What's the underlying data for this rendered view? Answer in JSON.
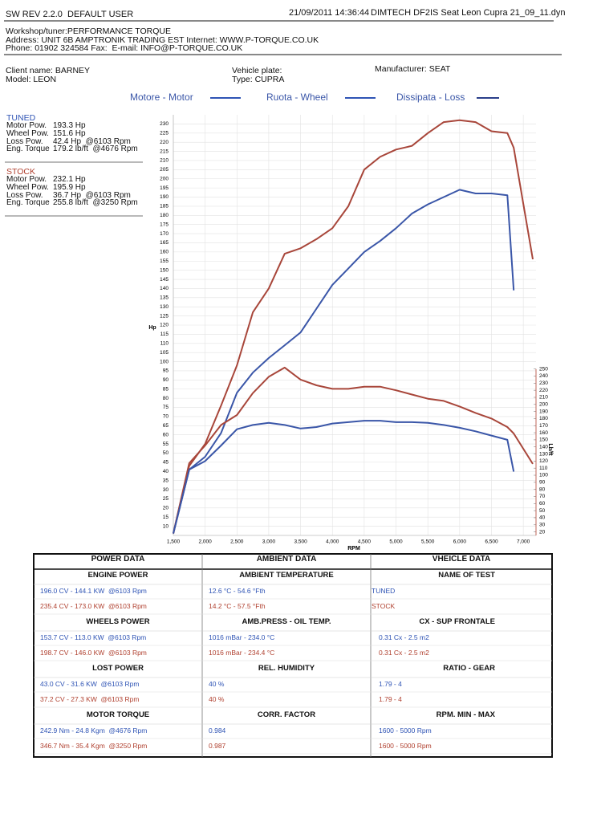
{
  "header": {
    "software": "SW REV 2.2.0  DEFAULT USER",
    "datetime": "21/09/2011 14:36:44",
    "file": "DIMTECH DF2IS Seat Leon Cupra 21_09_11.dyn"
  },
  "workshop": [
    "Workshop/tuner:PERFORMANCE TORQUE",
    "Address: UNIT 6B AMPTRONIK TRADING EST Internet: WWW.P-TORQUE.CO.UK",
    "Phone: 01902 324584 Fax:  E-mail: INFO@P-TORQUE.CO.UK"
  ],
  "client": {
    "name": "Client name: BARNEY",
    "model": "Model: LEON",
    "plate": "Vehicle plate:",
    "type": "Type: CUPRA",
    "manufacturer": "Manufacturer: SEAT"
  },
  "summary": [
    {
      "title": "TUNED",
      "color": "#2f54b5",
      "rows": [
        [
          "Motor Pow.",
          "193.3 Hp"
        ],
        [
          "Wheel Pow.",
          "151.6 Hp"
        ],
        [
          "Loss Pow.",
          "42.4 Hp  @6103 Rpm"
        ],
        [
          "Eng. Torque",
          "179.2 lb/ft  @4676 Rpm"
        ]
      ]
    },
    {
      "title": "STOCK",
      "color": "#b0402f",
      "rows": [
        [
          "Motor Pow.",
          "232.1 Hp"
        ],
        [
          "Wheel Pow.",
          "195.9 Hp"
        ],
        [
          "Loss Pow.",
          "36.7 Hp  @6103 Rpm"
        ],
        [
          "Eng. Torque",
          "255.8 lb/ft  @3250 Rpm"
        ]
      ]
    }
  ],
  "table": {
    "headers": [
      "POWER DATA",
      "AMBIENT DATA",
      "VHEICLE DATA"
    ],
    "row_colors": [
      "#2f54b5",
      "#b0402f"
    ],
    "groups": [
      {
        "labels": [
          "ENGINE POWER",
          "AMBIENT TEMPERATURE",
          "NAME OF TEST"
        ],
        "rows": [
          [
            "196.0 CV - 144.1 KW  @6103 Rpm",
            "12.6 °C - 54.6 °Fth",
            "TUNED"
          ],
          [
            "235.4 CV - 173.0 KW  @6103 Rpm",
            "14.2 °C - 57.5 °Fth",
            "STOCK"
          ]
        ]
      },
      {
        "labels": [
          "WHEELS POWER",
          "AMB.PRESS - OIL TEMP.",
          "CX - SUP FRONTALE"
        ],
        "rows": [
          [
            "153.7 CV - 113.0 KW  @6103 Rpm",
            "1016 mBar - 234.0 °C",
            "0.31 Cx - 2.5 m2"
          ],
          [
            "198.7 CV - 146.0 KW  @6103 Rpm",
            "1016 mBar - 234.4 °C",
            "0.31 Cx - 2.5 m2"
          ]
        ]
      },
      {
        "labels": [
          "LOST POWER",
          "REL. HUMIDITY",
          "RATIO - GEAR"
        ],
        "rows": [
          [
            "43.0 CV - 31.6 KW  @6103 Rpm",
            "40 %",
            "1.79 - 4"
          ],
          [
            "37.2 CV - 27.3 KW  @6103 Rpm",
            "40 %",
            "1.79 - 4"
          ]
        ]
      },
      {
        "labels": [
          "MOTOR TORQUE",
          "CORR. FACTOR",
          "RPM. MIN - MAX"
        ],
        "rows": [
          [
            "242.9 Nm - 24.8 Kgm  @4676 Rpm",
            "0.984",
            "1600 - 5000 Rpm"
          ],
          [
            "346.7 Nm - 35.4 Kgm  @3250 Rpm",
            "0.987",
            "1600 - 5000 Rpm"
          ]
        ]
      }
    ]
  },
  "chart_data": {
    "type": "line",
    "legend": [
      {
        "text": "Motore - Motor",
        "color": "#2f54b5"
      },
      {
        "text": "Ruota - Wheel",
        "color": "#2f54b5"
      },
      {
        "text": "Dissipata - Loss",
        "color": "#2a3f8a"
      }
    ],
    "x_label": "RPM",
    "y_label": "Hp",
    "y2_label": "Lb/ft",
    "x": [
      1500,
      1750,
      2000,
      2250,
      2500,
      2750,
      3000,
      3250,
      3500,
      3750,
      4000,
      4250,
      4500,
      4750,
      5000,
      5250,
      5500,
      5750,
      6000,
      6250,
      6500,
      6750,
      6850,
      7150
    ],
    "series": [
      {
        "color": "#a8463a",
        "values": [
          6,
          43,
          55,
          76,
          98,
          127,
          140,
          159,
          162,
          167,
          173,
          185,
          205,
          212,
          216,
          218,
          225,
          231,
          232,
          231,
          226,
          225,
          217,
          156
        ]
      },
      {
        "color": "#3a56a8",
        "values": [
          6,
          41,
          48,
          61,
          83,
          94,
          102,
          109,
          116,
          129,
          142,
          151,
          160,
          166,
          173,
          181,
          186,
          190,
          194,
          192,
          192,
          191,
          139,
          null
        ]
      },
      {
        "color": "#a8463a",
        "axis": "y2",
        "values": [
          18,
          117,
          142,
          171,
          185,
          216,
          239,
          252,
          235,
          227,
          222,
          222,
          225,
          225,
          220,
          214,
          208,
          205,
          197,
          188,
          180,
          168,
          159,
          116
        ]
      },
      {
        "color": "#3a56a8",
        "axis": "y2",
        "values": [
          18,
          108,
          120,
          142,
          165,
          171,
          174,
          171,
          166,
          168,
          173,
          175,
          177,
          177,
          175,
          175,
          174,
          171,
          167,
          162,
          156,
          150,
          105,
          null
        ]
      }
    ],
    "xlim": [
      1500,
      7200
    ],
    "xticks": [
      {
        "value": 1500,
        "label": "1,500"
      },
      {
        "value": 2000,
        "label": "2,000"
      },
      {
        "value": 2500,
        "label": "2,500"
      },
      {
        "value": 3000,
        "label": "3,000"
      },
      {
        "value": 3500,
        "label": "3,500"
      },
      {
        "value": 4000,
        "label": "4,000"
      },
      {
        "value": 4500,
        "label": "4,500"
      },
      {
        "value": 5000,
        "label": "5,000"
      },
      {
        "value": 5500,
        "label": "5,500"
      },
      {
        "value": 6000,
        "label": "6,000"
      },
      {
        "value": 6500,
        "label": "6,500"
      },
      {
        "value": 7000,
        "label": "7,000"
      }
    ],
    "ylim": [
      5,
      235
    ],
    "yticks": [
      10,
      15,
      20,
      25,
      30,
      35,
      40,
      45,
      50,
      55,
      60,
      65,
      70,
      75,
      80,
      85,
      90,
      95,
      100,
      105,
      110,
      115,
      120,
      125,
      130,
      135,
      140,
      145,
      150,
      155,
      160,
      165,
      170,
      175,
      180,
      185,
      190,
      195,
      200,
      205,
      210,
      215,
      220,
      225,
      230
    ],
    "y2lim": [
      15,
      609
    ],
    "y2ticks": [
      20,
      30,
      40,
      50,
      60,
      70,
      80,
      90,
      100,
      110,
      120,
      130,
      140,
      150,
      160,
      170,
      180,
      190,
      200,
      210,
      220,
      230,
      240,
      250
    ],
    "grid": true
  }
}
